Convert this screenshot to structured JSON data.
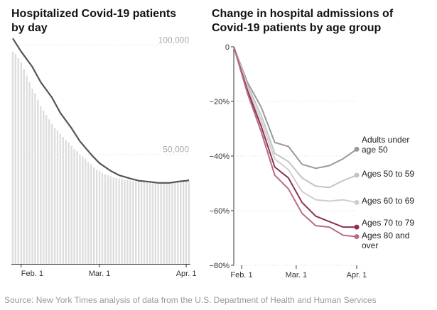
{
  "chart_data": [
    {
      "type": "bar",
      "title_lines": [
        "Hospitalized Covid-19 patients",
        "by day"
      ],
      "ylim": [
        0,
        105000
      ],
      "yticks": [
        {
          "value": 100000,
          "label": "100,000"
        },
        {
          "value": 50000,
          "label": "50,000"
        }
      ],
      "xticks": [
        {
          "day": 0,
          "label": "Feb. 1"
        },
        {
          "day": 28,
          "label": "Mar. 1"
        },
        {
          "day": 59,
          "label": "Apr. 1"
        }
      ],
      "bars": {
        "start_day": -3,
        "values": [
          97000,
          96000,
          94000,
          92000,
          89000,
          86000,
          83000,
          80000,
          78000,
          75000,
          72000,
          70000,
          68000,
          66000,
          64000,
          62000,
          61000,
          59500,
          58000,
          56500,
          55500,
          54000,
          52500,
          51500,
          50000,
          49000,
          48000,
          46500,
          45500,
          44000,
          43000,
          42500,
          41500,
          41000,
          40500,
          40000,
          39500,
          39300,
          39000,
          38800,
          38500,
          38300,
          38000,
          37800,
          37700,
          37600,
          37500,
          37400,
          37300,
          37200,
          37200,
          37100,
          37100,
          37000,
          37000,
          37100,
          37200,
          37300,
          37400,
          37500,
          37600,
          37700,
          37800,
          37900
        ]
      },
      "trend_line": {
        "days": [
          -3,
          0,
          4,
          7,
          11,
          14,
          18,
          21,
          25,
          28,
          32,
          35,
          39,
          42,
          46,
          49,
          53,
          56,
          59,
          60
        ],
        "values": [
          103000,
          97000,
          90000,
          83000,
          76000,
          69000,
          62000,
          56000,
          50000,
          46000,
          42500,
          40500,
          39000,
          38000,
          37500,
          37000,
          37000,
          37600,
          38000,
          38200
        ]
      },
      "colors": {
        "bar": "#dddddd",
        "line": "#555555"
      }
    },
    {
      "type": "line",
      "title_lines": [
        "Change in hospital admissions of",
        "Covid-19 patients by age group"
      ],
      "ylim": [
        -80,
        0
      ],
      "yticks": [
        {
          "value": 0,
          "label": "0"
        },
        {
          "value": -20,
          "label": "−20%"
        },
        {
          "value": -40,
          "label": "−40%"
        },
        {
          "value": -60,
          "label": "−60%"
        },
        {
          "value": -80,
          "label": "−80%"
        }
      ],
      "xticks": [
        {
          "day": 0,
          "label": "Feb. 1"
        },
        {
          "day": 28,
          "label": "Mar. 1"
        },
        {
          "day": 59,
          "label": "Apr. 1"
        }
      ],
      "x_days": [
        -4,
        3,
        10,
        17,
        24,
        31,
        38,
        45,
        52,
        59
      ],
      "series": [
        {
          "name_lines": [
            "Adults under",
            "age 50"
          ],
          "color": "#999999",
          "values": [
            0,
            -13,
            -22,
            -35,
            -36.5,
            -43,
            -44.5,
            -43.5,
            -41,
            -37.5
          ]
        },
        {
          "name_lines": [
            "Ages 50 to 59"
          ],
          "color": "#c4c4c4",
          "values": [
            0,
            -14,
            -25,
            -39,
            -42,
            -48,
            -51,
            -51.5,
            -49,
            -47
          ]
        },
        {
          "name_lines": [
            "Ages 60 to 69"
          ],
          "color": "#d2cdcd",
          "values": [
            0,
            -15,
            -27,
            -41,
            -45,
            -53,
            -56,
            -56.5,
            -56,
            -57
          ]
        },
        {
          "name_lines": [
            "Ages 70 to 79"
          ],
          "color": "#8f2f54",
          "values": [
            0,
            -16,
            -29,
            -44,
            -48,
            -57,
            -62,
            -64,
            -66,
            -66
          ]
        },
        {
          "name_lines": [
            "Ages 80 and",
            "over"
          ],
          "color": "#b86a8b",
          "values": [
            0,
            -17,
            -31,
            -47,
            -52,
            -61,
            -65.5,
            -66,
            -69,
            -69.5
          ]
        }
      ]
    }
  ],
  "source": "Source: New York Times analysis of data from the U.S. Department of Health and Human Services"
}
